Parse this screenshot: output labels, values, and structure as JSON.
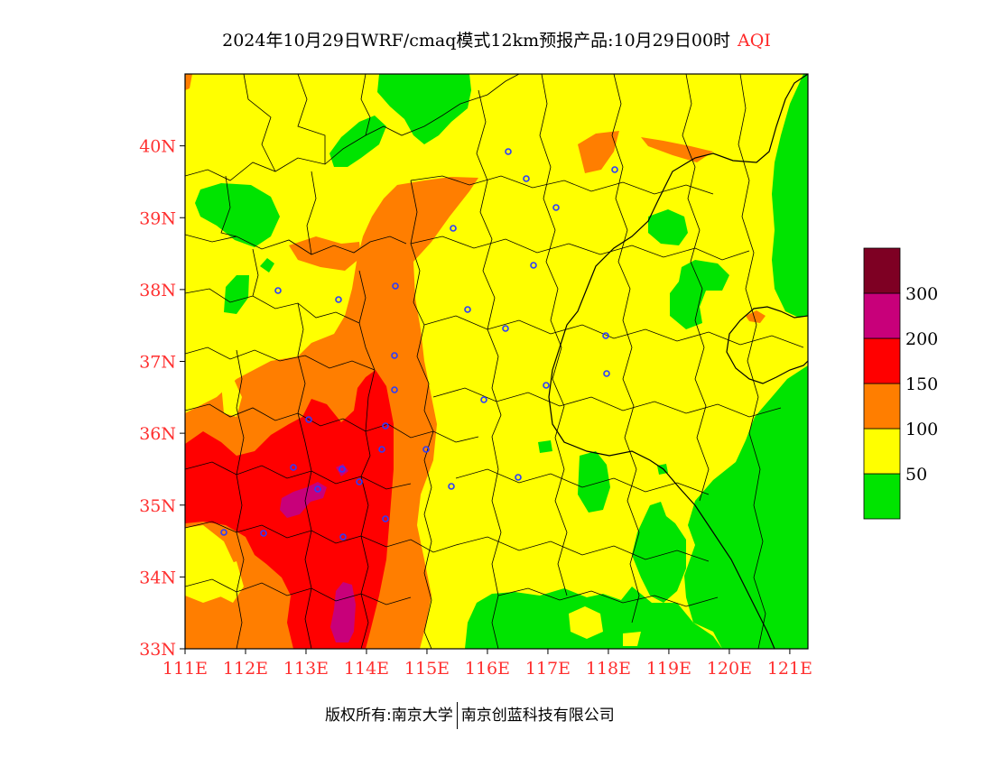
{
  "title": {
    "main": "2024年10月29日WRF/cmaq模式12km预报产品:10月29日00时",
    "variable": "AQI"
  },
  "axes": {
    "lat_ticks": [
      "33N",
      "34N",
      "35N",
      "36N",
      "37N",
      "38N",
      "39N",
      "40N"
    ],
    "lon_ticks": [
      "111E",
      "112E",
      "113E",
      "114E",
      "115E",
      "116E",
      "117E",
      "118E",
      "119E",
      "120E",
      "121E"
    ],
    "lat_range": [
      33,
      41
    ],
    "lon_range": [
      111,
      121.3
    ]
  },
  "legend": {
    "levels": [
      {
        "label": "50",
        "color": "#00e400"
      },
      {
        "label": "100",
        "color": "#ffff00"
      },
      {
        "label": "150",
        "color": "#ff7e00"
      },
      {
        "label": "200",
        "color": "#ff0000"
      },
      {
        "label": "300",
        "color": "#c8007a"
      },
      {
        "label": "",
        "color": "#7e0023"
      }
    ]
  },
  "footer": {
    "copyright": "版权所有:南京大学",
    "company": "南京创蓝科技有限公司"
  }
}
